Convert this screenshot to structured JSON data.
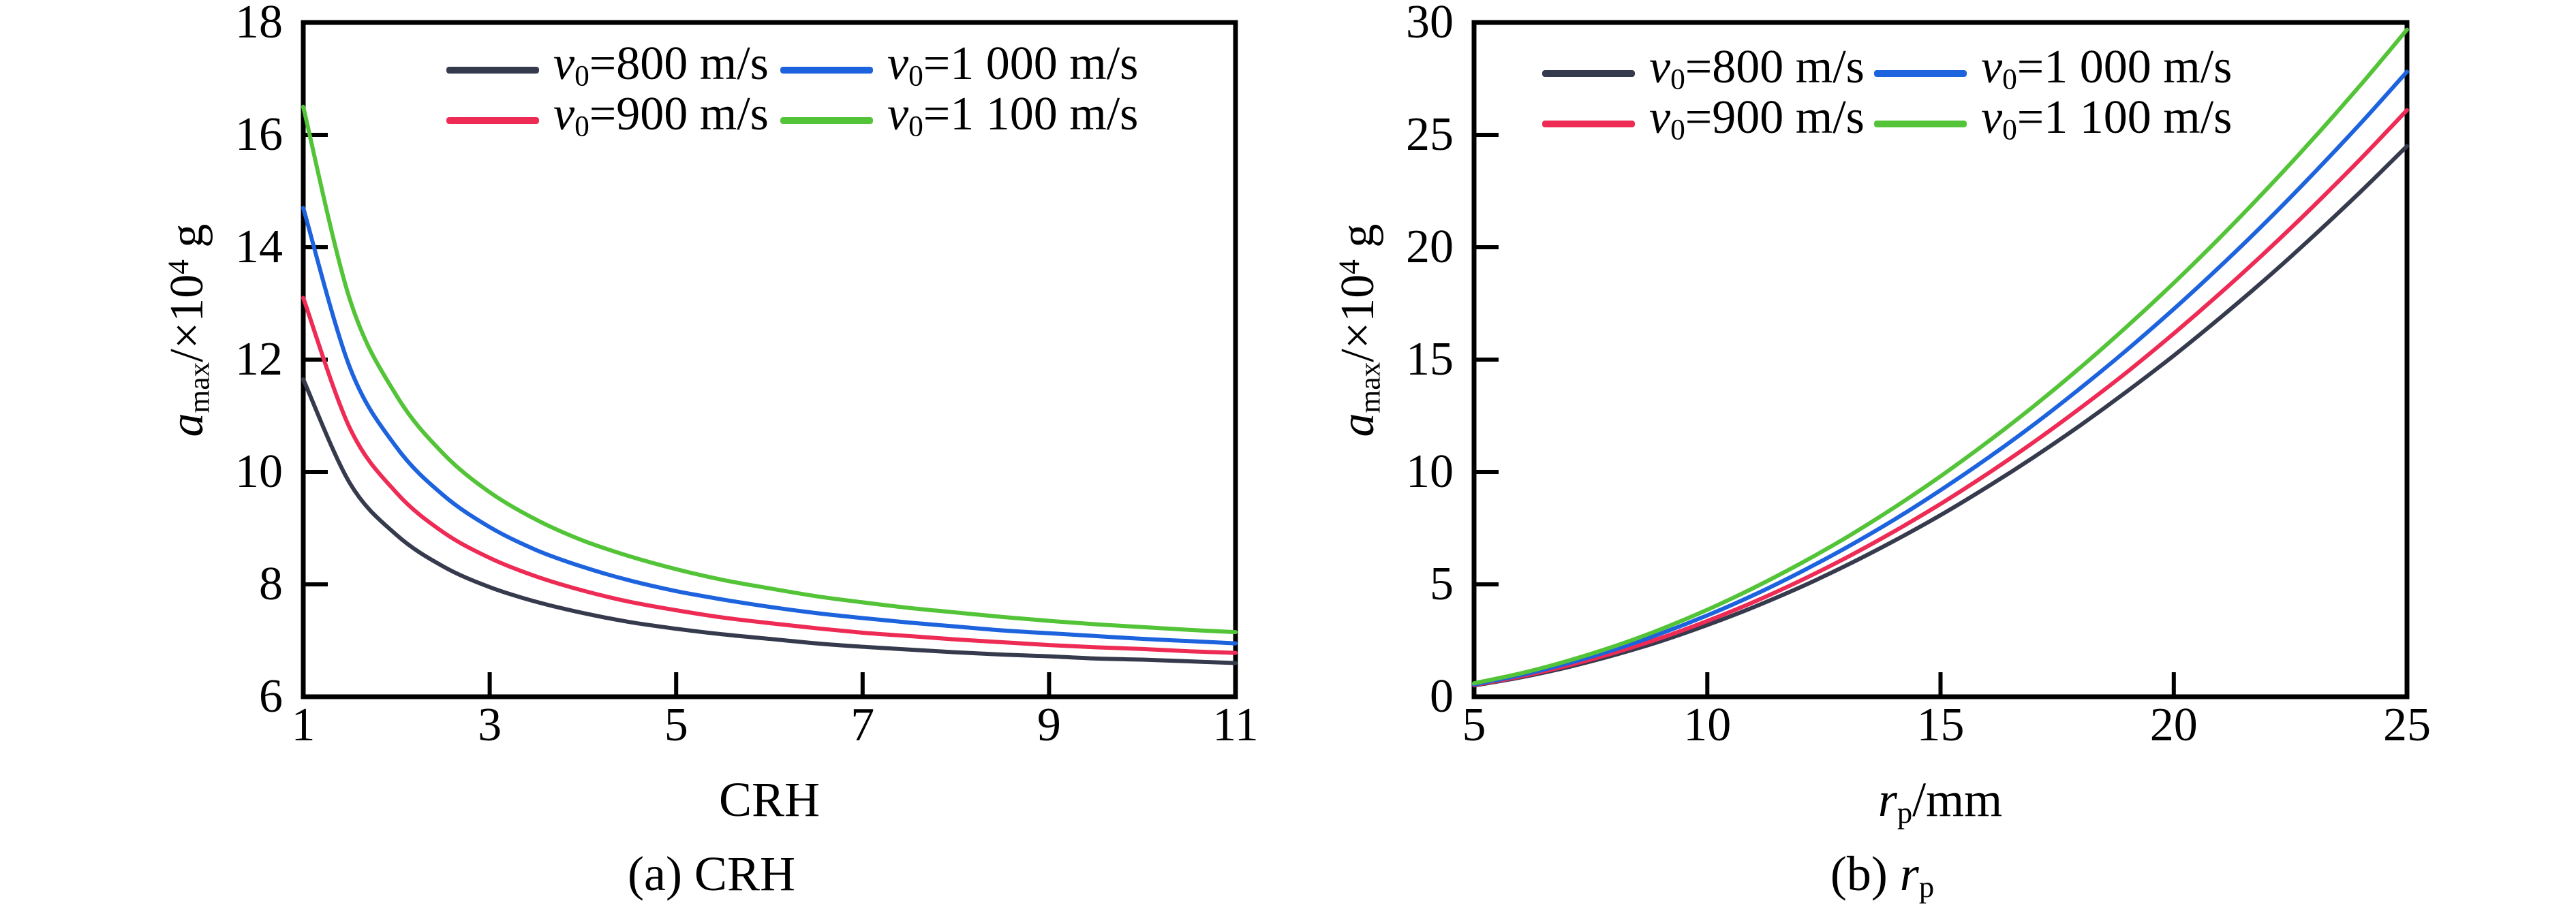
{
  "figure": {
    "background": "#ffffff",
    "axis_color": "#000000",
    "tick_style": "inward",
    "grid": false
  },
  "chart_data": [
    {
      "type": "line",
      "panel": "a",
      "caption": "(a) CRH",
      "caption_parts": [
        {
          "t": "(a) CRH"
        }
      ],
      "xlabel": "CRH",
      "xlabel_parts": [
        {
          "t": "CRH"
        }
      ],
      "ylabel": "a_max/×10⁴ g",
      "ylabel_parts": [
        {
          "t": "a",
          "s": "i"
        },
        {
          "t": "max",
          "s": "sub"
        },
        {
          "t": "/×10"
        },
        {
          "t": "4",
          "s": "sup"
        },
        {
          "t": " g"
        }
      ],
      "xlim": [
        1,
        11
      ],
      "ylim": [
        6,
        18
      ],
      "x_ticks": [
        1,
        3,
        5,
        7,
        9,
        11
      ],
      "y_ticks": [
        6,
        8,
        10,
        12,
        14,
        16,
        18
      ],
      "legend_position": "top-inside-two-columns",
      "x": [
        1,
        1.5,
        2,
        2.5,
        3,
        3.5,
        4,
        4.5,
        5,
        5.5,
        6,
        6.5,
        7,
        7.5,
        8,
        8.5,
        9,
        9.5,
        10,
        10.5,
        11
      ],
      "series": [
        {
          "name": "v0=800 m/s",
          "label_parts": [
            {
              "t": "v",
              "s": "i"
            },
            {
              "t": "0",
              "s": "sub"
            },
            {
              "t": "=800 m/s"
            }
          ],
          "color": "#363a4d",
          "values": [
            11.65,
            9.8,
            8.88,
            8.32,
            7.95,
            7.69,
            7.49,
            7.33,
            7.21,
            7.11,
            7.03,
            6.95,
            6.89,
            6.84,
            6.79,
            6.75,
            6.72,
            6.68,
            6.66,
            6.63,
            6.6
          ]
        },
        {
          "name": "v0=900 m/s",
          "label_parts": [
            {
              "t": "v",
              "s": "i"
            },
            {
              "t": "0",
              "s": "sub"
            },
            {
              "t": "=900 m/s"
            }
          ],
          "color": "#ed2b54",
          "values": [
            13.1,
            10.78,
            9.63,
            8.93,
            8.47,
            8.14,
            7.89,
            7.69,
            7.54,
            7.41,
            7.31,
            7.22,
            7.14,
            7.08,
            7.02,
            6.97,
            6.92,
            6.88,
            6.85,
            6.81,
            6.78
          ]
        },
        {
          "name": "v0=1 000 m/s",
          "label_parts": [
            {
              "t": "v",
              "s": "i"
            },
            {
              "t": "0",
              "s": "sub"
            },
            {
              "t": "=1 000 m/s"
            }
          ],
          "color": "#1e63de",
          "values": [
            14.7,
            11.86,
            10.44,
            9.59,
            9.02,
            8.61,
            8.31,
            8.07,
            7.88,
            7.73,
            7.6,
            7.49,
            7.4,
            7.32,
            7.25,
            7.18,
            7.13,
            7.08,
            7.03,
            6.99,
            6.95
          ]
        },
        {
          "name": "v0=1 100 m/s",
          "label_parts": [
            {
              "t": "v",
              "s": "i"
            },
            {
              "t": "0",
              "s": "sub"
            },
            {
              "t": "=1 100 m/s"
            }
          ],
          "color": "#53c437",
          "values": [
            16.5,
            13.07,
            11.36,
            10.33,
            9.64,
            9.15,
            8.78,
            8.5,
            8.27,
            8.08,
            7.93,
            7.79,
            7.68,
            7.58,
            7.5,
            7.42,
            7.35,
            7.29,
            7.24,
            7.19,
            7.15
          ]
        }
      ]
    },
    {
      "type": "line",
      "panel": "b",
      "caption": "(b) rp",
      "caption_parts": [
        {
          "t": "(b) "
        },
        {
          "t": "r",
          "s": "i"
        },
        {
          "t": "p",
          "s": "sub"
        }
      ],
      "xlabel": "rp/mm",
      "xlabel_parts": [
        {
          "t": "r",
          "s": "i"
        },
        {
          "t": "p",
          "s": "sub"
        },
        {
          "t": "/mm"
        }
      ],
      "ylabel": "a_max/×10⁴ g",
      "ylabel_parts": [
        {
          "t": "a",
          "s": "i"
        },
        {
          "t": "max",
          "s": "sub"
        },
        {
          "t": "/×10"
        },
        {
          "t": "4",
          "s": "sup"
        },
        {
          "t": " g"
        }
      ],
      "xlim": [
        5,
        25
      ],
      "ylim": [
        0,
        30
      ],
      "x_ticks": [
        5,
        10,
        15,
        20,
        25
      ],
      "y_ticks": [
        0,
        5,
        10,
        15,
        20,
        25,
        30
      ],
      "legend_position": "top-inside-two-columns",
      "x": [
        5,
        6,
        7,
        8,
        9,
        10,
        11,
        12,
        13,
        14,
        15,
        16,
        17,
        18,
        19,
        20,
        21,
        22,
        23,
        24,
        25
      ],
      "series": [
        {
          "name": "v0=800 m/s",
          "label_parts": [
            {
              "t": "v",
              "s": "i"
            },
            {
              "t": "0",
              "s": "sub"
            },
            {
              "t": "=800 m/s"
            }
          ],
          "color": "#363a4d",
          "values": [
            0.5,
            0.86,
            1.31,
            1.85,
            2.47,
            3.19,
            3.99,
            4.88,
            5.86,
            6.93,
            8.08,
            9.33,
            10.66,
            12.08,
            13.59,
            15.18,
            16.87,
            18.64,
            20.51,
            22.46,
            24.5
          ]
        },
        {
          "name": "v0=900 m/s",
          "label_parts": [
            {
              "t": "v",
              "s": "i"
            },
            {
              "t": "0",
              "s": "sub"
            },
            {
              "t": "=900 m/s"
            }
          ],
          "color": "#ed2b54",
          "values": [
            0.52,
            0.9,
            1.38,
            1.95,
            2.61,
            3.37,
            4.22,
            5.17,
            6.21,
            7.35,
            8.58,
            9.91,
            11.33,
            12.85,
            14.45,
            16.16,
            17.96,
            19.85,
            21.84,
            23.92,
            26.1
          ]
        },
        {
          "name": "v0=1 000 m/s",
          "label_parts": [
            {
              "t": "v",
              "s": "i"
            },
            {
              "t": "0",
              "s": "sub"
            },
            {
              "t": "=1 000 m/s"
            }
          ],
          "color": "#1e63de",
          "values": [
            0.55,
            0.96,
            1.48,
            2.09,
            2.81,
            3.62,
            4.53,
            5.55,
            6.66,
            7.87,
            9.19,
            10.6,
            12.11,
            13.73,
            15.44,
            17.25,
            19.16,
            21.17,
            23.29,
            25.5,
            27.81
          ]
        },
        {
          "name": "v0=1 100 m/s",
          "label_parts": [
            {
              "t": "v",
              "s": "i"
            },
            {
              "t": "0",
              "s": "sub"
            },
            {
              "t": "=1 100 m/s"
            }
          ],
          "color": "#53c437",
          "values": [
            0.6,
            1.04,
            1.59,
            2.24,
            3.0,
            3.87,
            4.85,
            5.93,
            7.11,
            8.41,
            9.81,
            11.32,
            12.93,
            14.65,
            16.48,
            18.41,
            20.45,
            22.6,
            24.85,
            27.21,
            29.68
          ]
        }
      ]
    }
  ]
}
